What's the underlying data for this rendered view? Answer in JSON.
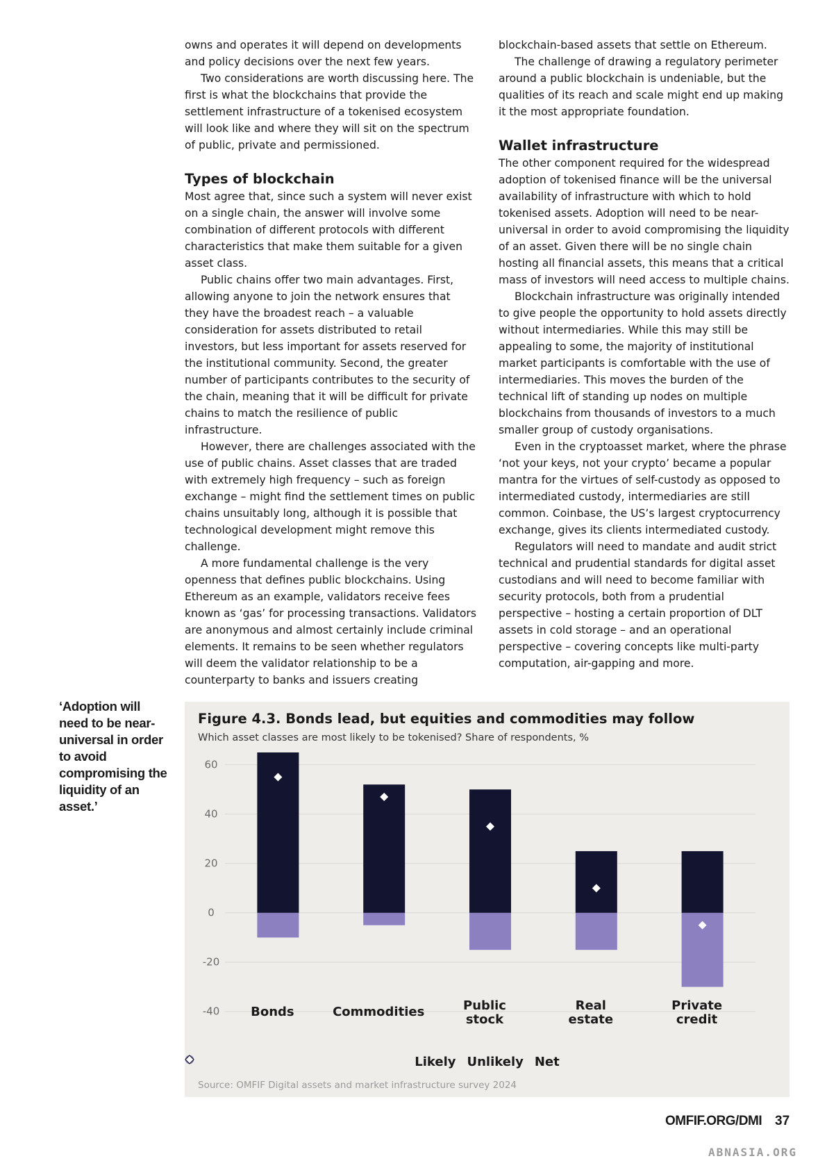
{
  "left_column": {
    "intro": [
      "owns and operates it will depend on developments and policy decisions over the next few years.",
      "Two considerations are worth discussing here. The first is what the blockchains that provide the settlement infrastructure of a tokenised ecosystem will look like and where they will sit on the spectrum of public, private and permissioned."
    ],
    "heading": "Types of blockchain",
    "paragraphs": [
      "Most agree that, since such a system will never exist on a single chain, the answer will involve some combination of different protocols with different characteristics that make them suitable for a given asset class.",
      "Public chains offer two main advantages. First, allowing anyone to join the network ensures that they have the broadest reach – a valuable consideration for assets distributed to retail investors, but less important for assets reserved for the institutional community. Second, the greater number of participants contributes to the security of the chain, meaning that it will be difficult for private chains to match the resilience of public infrastructure.",
      "However, there are challenges associated with the use of public chains. Asset classes that are traded with extremely high frequency – such as foreign exchange – might find the settlement times on public chains unsuitably long, although it is possible that technological development might remove this challenge.",
      "A more fundamental challenge is the very openness that defines public blockchains. Using Ethereum as an example, validators receive fees known as ‘gas’ for processing transactions. Validators are anonymous and almost certainly include criminal elements. It remains to be seen whether regulators will deem the validator relationship to be a counterparty to banks and issuers creating"
    ]
  },
  "right_column": {
    "intro": [
      "blockchain-based assets that settle on Ethereum.",
      "The challenge of drawing a regulatory perimeter around a public blockchain is undeniable, but the qualities of its reach and scale might end up making it the most appropriate foundation."
    ],
    "heading": "Wallet infrastructure",
    "paragraphs": [
      "The other component required for the widespread adoption of tokenised finance will be the universal availability of infrastructure with which to hold tokenised assets. Adoption will need to be near-universal in order to avoid compromising the liquidity of an asset. Given there will be no single chain hosting all financial assets, this means that a critical mass of investors will need access to multiple chains.",
      "Blockchain infrastructure was originally intended to give people the opportunity to hold assets directly without intermediaries. While this may still be appealing to some, the majority of institutional market participants is comfortable with the use of intermediaries. This moves the burden of the technical lift of standing up nodes on multiple blockchains from thousands of investors to a much smaller group of custody organisations.",
      "Even in the cryptoasset market, where the phrase ‘not your keys, not your crypto’ became a popular mantra for the virtues of self-custody as opposed to intermediated custody, intermediaries are still common. Coinbase, the US’s largest cryptocurrency exchange, gives its clients intermediated custody.",
      "Regulators will need to mandate and audit strict technical and prudential standards for digital asset custodians and will need to become familiar with security protocols, both from a prudential perspective – hosting a certain proportion of DLT assets in cold storage – and an operational perspective – covering concepts like multi-party computation, air-gapping and more."
    ]
  },
  "pull_quote": "‘Adoption will need to be near-universal in order to avoid compromising the liquidity of an asset.’",
  "chart_data": {
    "type": "bar",
    "title": "Figure 4.3. Bonds lead, but equities and commodities may follow",
    "subtitle": "Which asset classes are most likely to be tokenised? Share of respondents, %",
    "categories": [
      "Bonds",
      "Commodities",
      "Public\nstock",
      "Real\nestate",
      "Private\ncredit"
    ],
    "series": [
      {
        "name": "Likely",
        "color": "#13142f",
        "values": [
          65,
          52,
          50,
          25,
          25
        ]
      },
      {
        "name": "Unlikely",
        "color": "#8c80c0",
        "values": [
          -10,
          -5,
          -15,
          -15,
          -30
        ]
      },
      {
        "name": "Net",
        "color": "#ffffff",
        "marker": "diamond",
        "values": [
          55,
          47,
          35,
          10,
          -5
        ]
      }
    ],
    "ylim": [
      -40,
      65
    ],
    "yticks": [
      60,
      40,
      20,
      0,
      -20,
      -40
    ],
    "grid": true,
    "source": "Source: OMFIF Digital assets and market infrastructure survey 2024"
  },
  "footer": {
    "site": "OMFIF.ORG/DMI",
    "page": "37",
    "watermark": "ABNASIA.ORG"
  }
}
